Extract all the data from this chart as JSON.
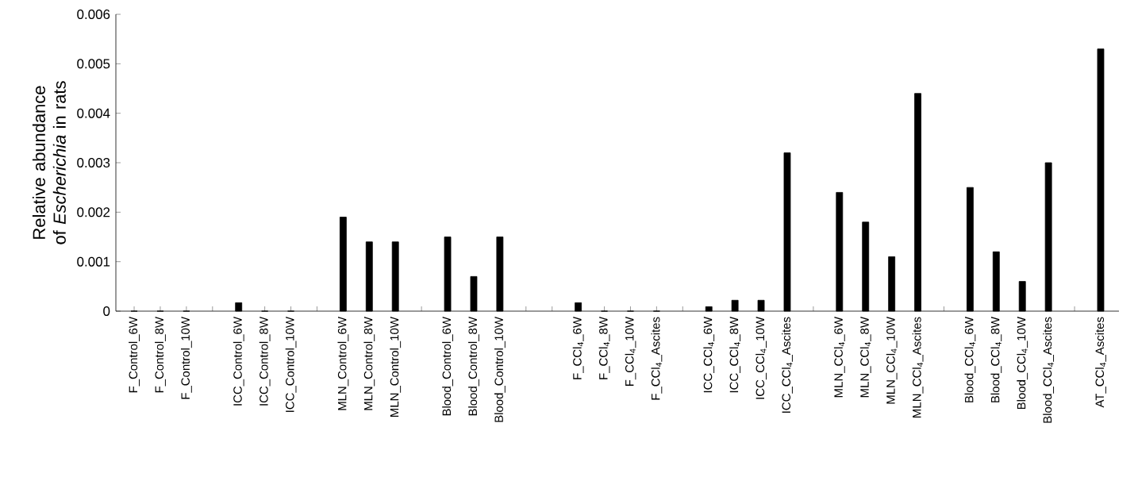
{
  "chart_data": {
    "type": "bar",
    "ylabel": "Relative abundance of *Escherichia* in rats",
    "categories": [
      "F_Control_6W",
      "F_Control_8W",
      "F_Control_10W",
      null,
      "ICC_Control_6W",
      "ICC_Control_8W",
      "ICC_Control_10W",
      null,
      "MLN_Control_6W",
      "MLN_Control_8W",
      "MLN_Control_10W",
      null,
      "Blood_Control_6W",
      "Blood_Control_8W",
      "Blood_Control_10W",
      null,
      null,
      "F_CCl$_{4}$_6W",
      "F_CCl$_{4}$_8W",
      "F_CCl$_{4}$_10W",
      "F_CCl$_{4}$_Ascites",
      null,
      "ICC_CCl$_{4}$_6W",
      "ICC_CCl$_{4}$_8W",
      "ICC_CCl$_{4}$_10W",
      "ICC_CCl$_{4}$_Ascites",
      null,
      "MLN_CCl$_{4}$_6W",
      "MLN_CCl$_{4}$_8W",
      "MLN_CCl$_{4}$_10W",
      "MLN_CCl$_{4}$_Ascites",
      null,
      "Blood_CCl$_{4}$_6W",
      "Blood_CCl$_{4}$_8W",
      "Blood_CCl$_{4}$_10W",
      "Blood_CCl$_{4}$_Ascites",
      null,
      "AT_CCl$_{4}$_Ascites"
    ],
    "values": [
      0,
      0,
      0,
      null,
      0.00017,
      0,
      0,
      null,
      0.0019,
      0.0014,
      0.0014,
      null,
      0.0015,
      0.0007,
      0.0015,
      null,
      null,
      0.00017,
      0,
      0,
      0,
      null,
      9e-05,
      0.00022,
      0.00022,
      0.0032,
      null,
      0.0024,
      0.0018,
      0.0011,
      0.0044,
      null,
      0.0025,
      0.0012,
      0.0006,
      0.003,
      null,
      0.0053
    ],
    "color": "#000000",
    "ylim": [
      0,
      0.006
    ],
    "yticks": [
      0,
      0.001,
      0.002,
      0.003,
      0.004,
      0.005,
      0.006
    ],
    "grid": false
  }
}
